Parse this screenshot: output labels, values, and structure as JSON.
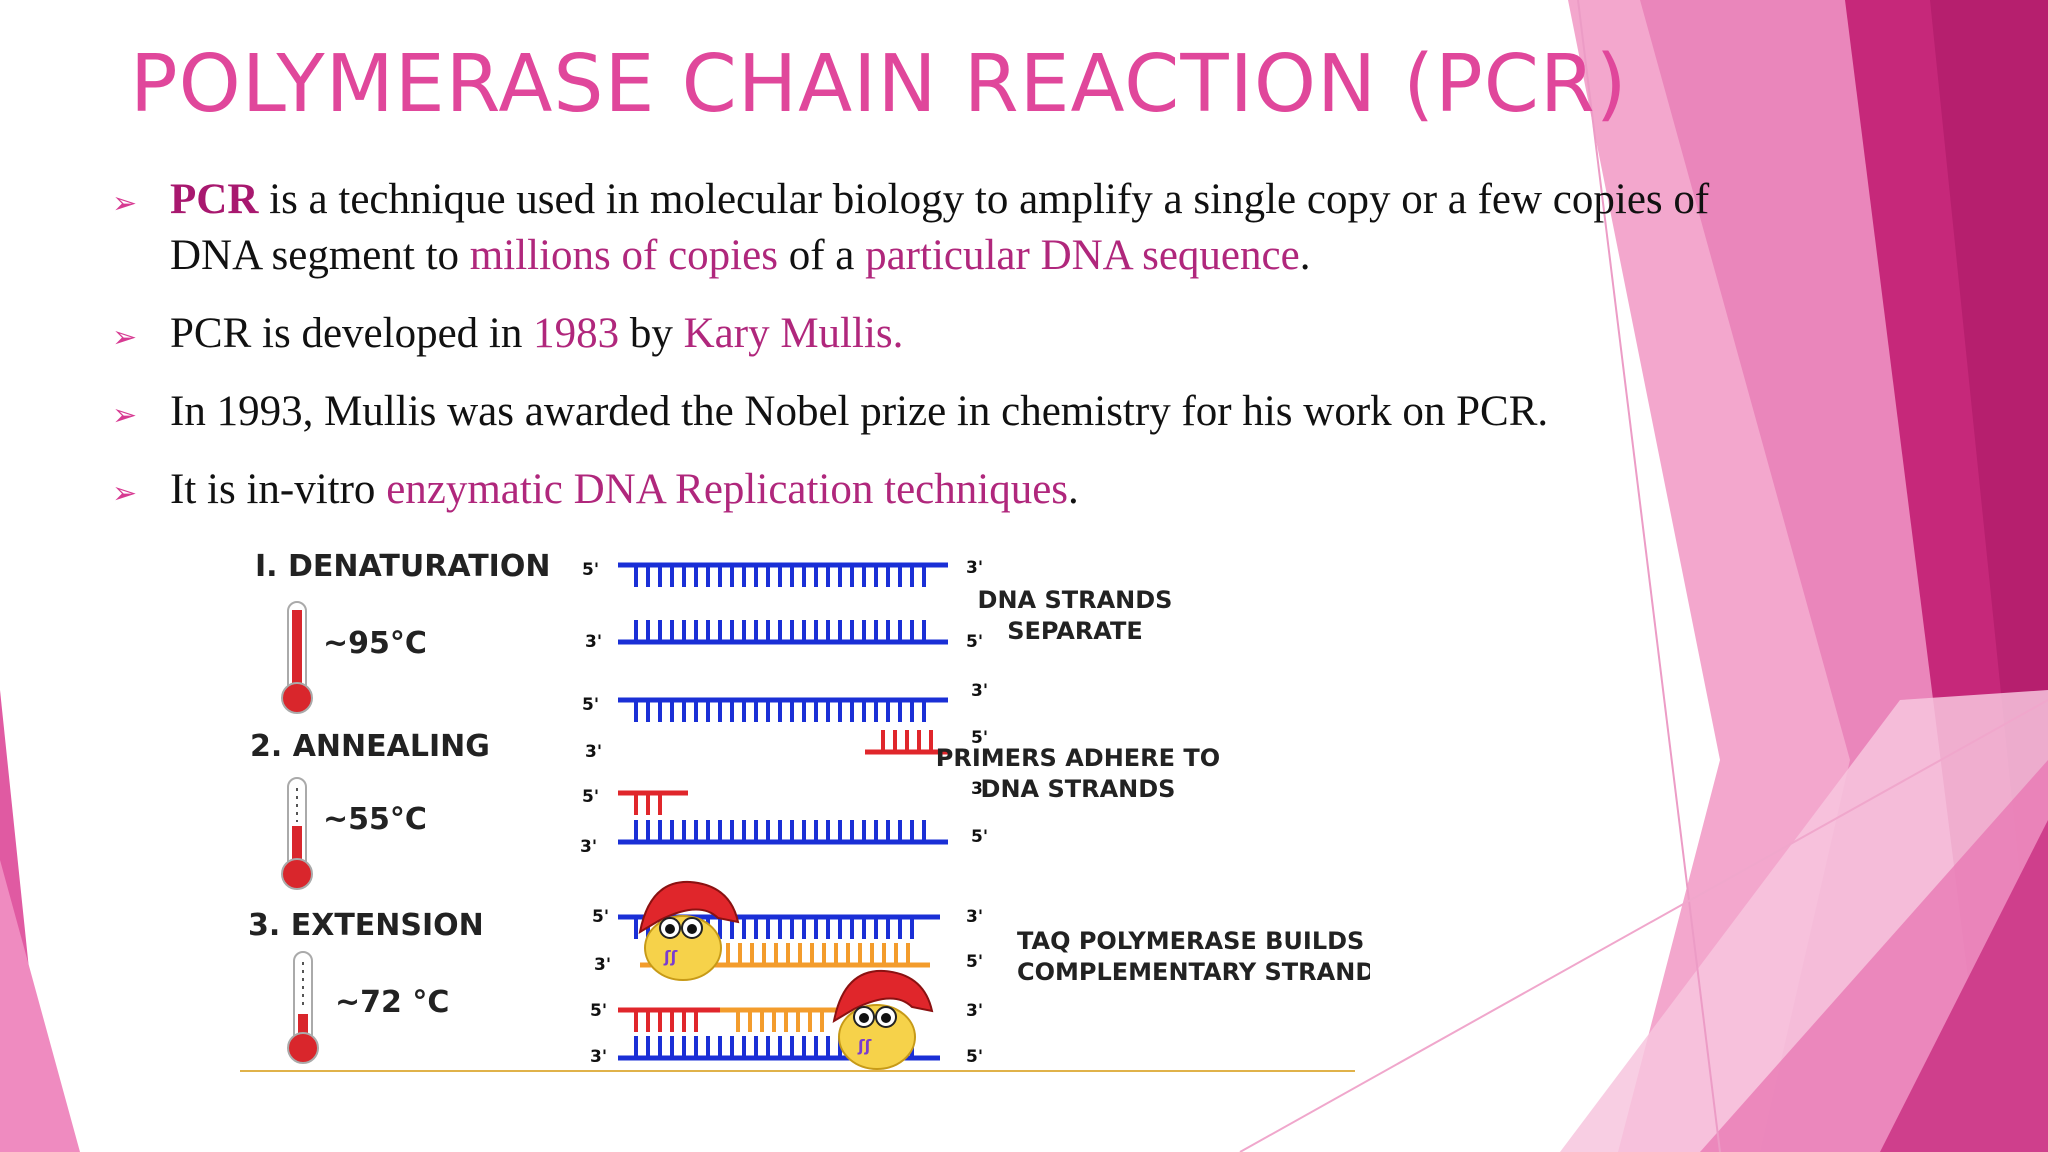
{
  "slide": {
    "title": "POLYMERASE CHAIN REACTION (PCR)",
    "bullets": [
      {
        "b1": "PCR",
        "b2": " is a technique used in molecular biology to amplify a single copy or a few copies of DNA segment to ",
        "b3": "millions of copies",
        "b4": " of a ",
        "b5": "particular DNA sequence",
        "b6": "."
      },
      {
        "b1": "PCR is developed in ",
        "b2": "1983",
        "b3": " by ",
        "b4": "Kary Mullis."
      },
      {
        "b1": "In 1993, Mullis was awarded the Nobel prize in chemistry for his work on PCR."
      },
      {
        "b1": "It is in-vitro ",
        "b2": "enzymatic DNA Replication techniques",
        "b3": "."
      }
    ]
  },
  "diagram": {
    "steps": [
      {
        "name": "I. DENATURATION",
        "temp": "~95°C"
      },
      {
        "name": "2. ANNEALING",
        "temp": "~55°C"
      },
      {
        "name": "3. EXTENSION",
        "temp": "~72 °C"
      }
    ],
    "descriptions": {
      "d1_line1": "DNA STRANDS",
      "d1_line2": "SEPARATE",
      "d2_line1": "PRIMERS ADHERE TO",
      "d2_line2": "DNA STRANDS",
      "d3_line1": "TAQ POLYMERASE BUILDS",
      "d3_line2": "COMPLEMENTARY STRAND"
    },
    "ends": {
      "five": "5'",
      "three": "3'"
    }
  },
  "colors": {
    "title": "#e0479b",
    "accent": "#b0277c",
    "template_strand": "#1a2fd6",
    "primer": "#e0262b",
    "new_strand": "#f39c2c",
    "thermometer": "#d9262c"
  }
}
